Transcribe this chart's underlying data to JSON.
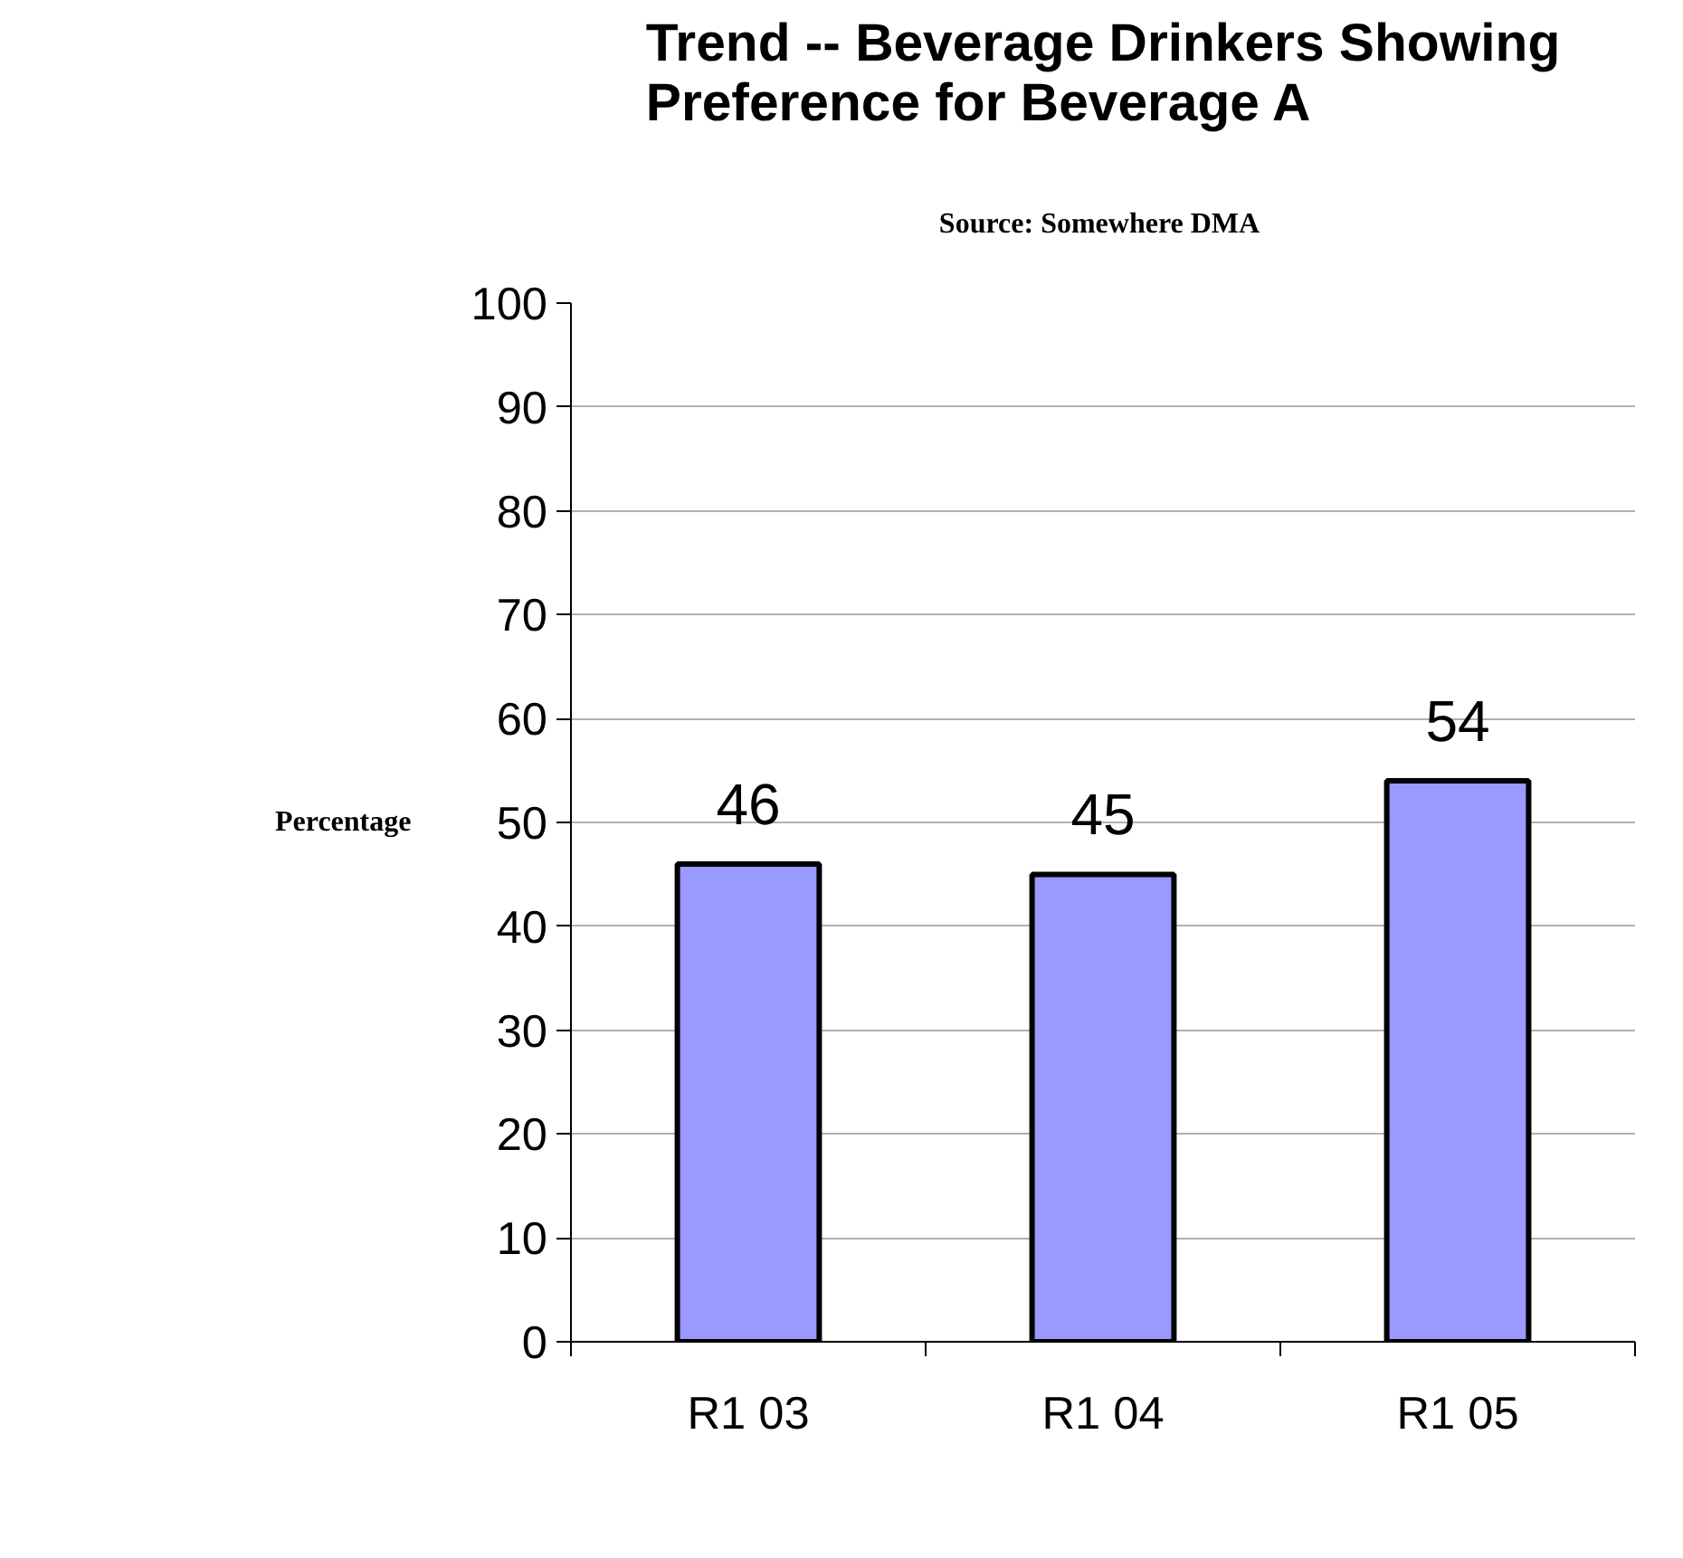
{
  "chart_data": {
    "type": "bar",
    "title": "Trend -- Beverage Drinkers Showing Preference for Beverage A",
    "annotations": [
      "Source:  Somewhere DMA"
    ],
    "ylabel": "Percentage",
    "categories": [
      "R1 03",
      "R1 04",
      "R1 05"
    ],
    "values": [
      46,
      45,
      54
    ],
    "color": "#9999ff",
    "ylim": [
      0,
      100
    ],
    "yticks": [
      0,
      10,
      20,
      30,
      40,
      50,
      60,
      70,
      80,
      90,
      100
    ],
    "grid": "y",
    "data_labels": true
  }
}
